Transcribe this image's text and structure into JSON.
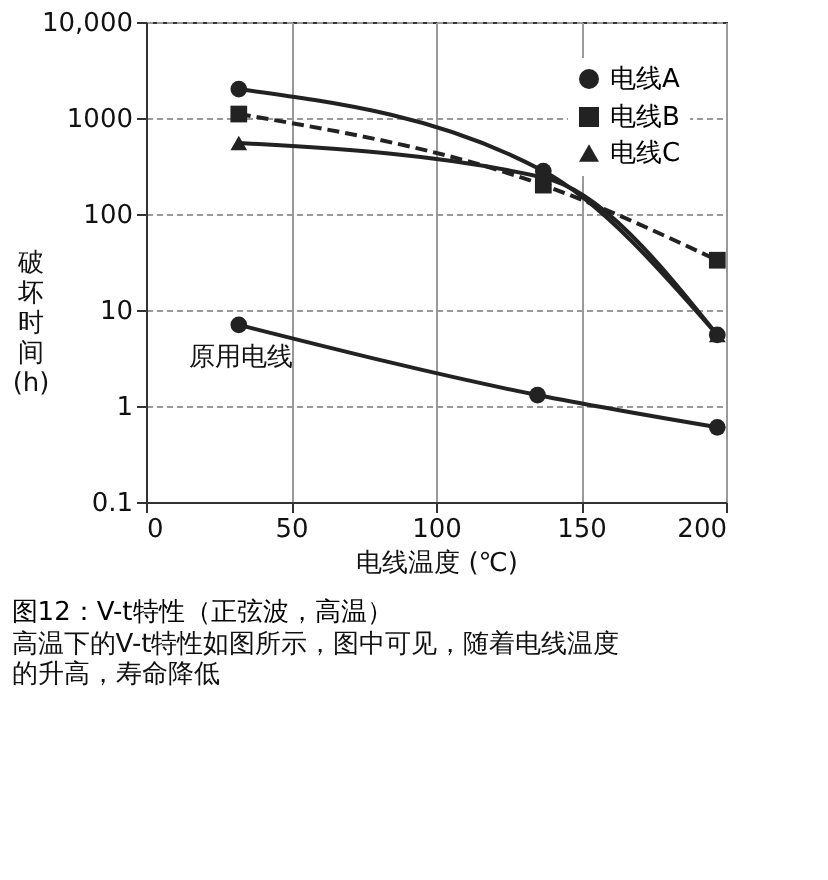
{
  "chart_data": {
    "type": "line",
    "title": "图12：V-t特性（正弦波，高温）",
    "xlabel": "电线温度 (℃)",
    "ylabel": "破坏时间(h)",
    "log": "y",
    "grid": true,
    "legend": "top right",
    "xlim": [
      0,
      200
    ],
    "xticks": [
      0,
      50,
      100,
      150,
      200
    ],
    "ylim": [
      0.1,
      10000
    ],
    "yticks": [
      0.1,
      1,
      10,
      100,
      1000,
      {
        "value": 10000,
        "label": "10,000"
      }
    ],
    "series": [
      {
        "name": "电线A",
        "color": "#222222",
        "marker": "circle",
        "line_style": "solid",
        "x": [
          32,
          137,
          197
        ],
        "values": [
          2000,
          280,
          5.5
        ]
      },
      {
        "name": "电线B",
        "color": "#222222",
        "marker": "square",
        "line_style": "dashed",
        "x": [
          32,
          137,
          197
        ],
        "values": [
          1100,
          200,
          33
        ]
      },
      {
        "name": "电线C",
        "color": "#222222",
        "marker": "triangle",
        "line_style": "solid",
        "x": [
          32,
          137,
          197
        ],
        "values": [
          550,
          240,
          5.5
        ]
      },
      {
        "color": "#222222",
        "marker": "circle",
        "line_style": "solid",
        "x": [
          32,
          135,
          197
        ],
        "values": [
          7,
          1.3,
          0.6
        ]
      }
    ],
    "annotations": [
      {
        "text": "原用电线",
        "x": 32,
        "y": 7
      },
      "高温下的V-t特性如图所示，图中可见，随着电线温度的升高，寿命降低"
    ]
  }
}
